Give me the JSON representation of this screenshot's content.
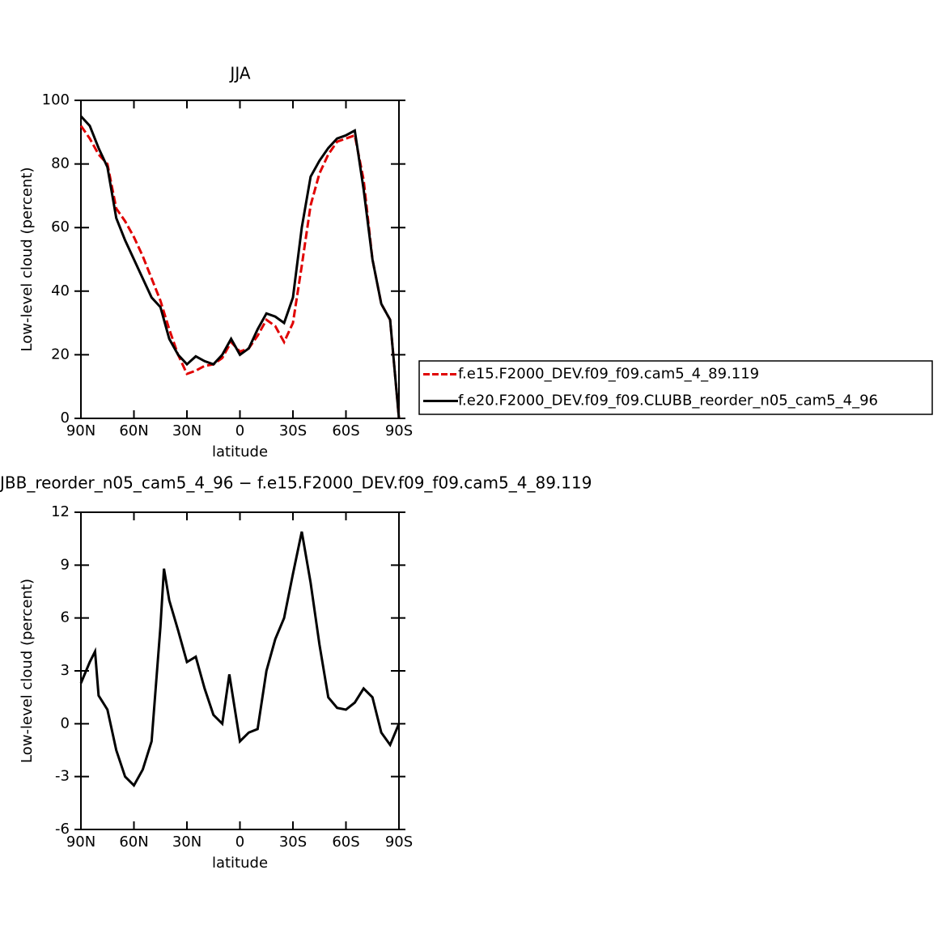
{
  "chart_data": [
    {
      "type": "line",
      "title": "JJA",
      "xlabel": "latitude",
      "ylabel": "Low-level cloud (percent)",
      "x": [
        90,
        85,
        80,
        75,
        70,
        65,
        60,
        55,
        50,
        45,
        40,
        35,
        30,
        25,
        20,
        15,
        10,
        5,
        0,
        -5,
        -10,
        -15,
        -20,
        -25,
        -30,
        -35,
        -40,
        -45,
        -50,
        -55,
        -60,
        -65,
        -70,
        -75,
        -80,
        -85,
        -90
      ],
      "xlim": [
        90,
        -90
      ],
      "xticks": [
        {
          "value": 90,
          "label": "90N"
        },
        {
          "value": 60,
          "label": "60N"
        },
        {
          "value": 30,
          "label": "30N"
        },
        0,
        {
          "value": -30,
          "label": "30S"
        },
        {
          "value": -60,
          "label": "60S"
        },
        {
          "value": -90,
          "label": "90S"
        }
      ],
      "ylim": [
        0,
        100
      ],
      "yticks": [
        0,
        20,
        40,
        60,
        80,
        100
      ],
      "series": [
        {
          "name": "f.e15.F2000_DEV.f09_f09.cam5_4_89.119",
          "color": "#e00000",
          "dashed": true,
          "values": [
            92,
            88,
            83,
            80,
            66,
            62,
            57,
            51,
            44,
            37,
            28,
            20,
            14,
            15,
            16.5,
            17,
            19,
            24,
            21,
            22,
            26,
            31,
            29,
            24,
            30,
            48,
            67,
            77,
            83,
            87,
            88,
            89,
            75,
            50,
            36,
            31,
            0
          ]
        },
        {
          "name": "f.e20.F2000_DEV.f09_f09.CLUBB_reorder_n05_cam5_4_96",
          "color": "#000000",
          "dashed": false,
          "values": [
            95,
            92,
            85,
            79,
            63,
            56,
            50,
            44,
            38,
            35,
            25,
            20,
            17,
            19.5,
            18,
            17,
            20,
            25,
            20,
            22,
            28,
            33,
            32,
            30,
            38,
            60,
            76,
            81,
            85,
            88,
            89,
            90.5,
            72,
            50,
            36,
            31,
            0
          ]
        }
      ]
    },
    {
      "type": "line",
      "title": "JBB_reorder_n05_cam5_4_96 − f.e15.F2000_DEV.f09_f09.cam5_4_89.119",
      "xlabel": "latitude",
      "ylabel": "Low-level cloud (percent)",
      "x": [
        90,
        85,
        82,
        80,
        75,
        70,
        65,
        60,
        55,
        50,
        45,
        43,
        40,
        35,
        30,
        25,
        20,
        15,
        10,
        6,
        0,
        -5,
        -10,
        -15,
        -20,
        -25,
        -30,
        -35,
        -40,
        -45,
        -50,
        -55,
        -60,
        -65,
        -70,
        -75,
        -80,
        -85,
        -90
      ],
      "xlim": [
        90,
        -90
      ],
      "xticks": [
        {
          "value": 90,
          "label": "90N"
        },
        {
          "value": 60,
          "label": "60N"
        },
        {
          "value": 30,
          "label": "30N"
        },
        0,
        {
          "value": -30,
          "label": "30S"
        },
        {
          "value": -60,
          "label": "60S"
        },
        {
          "value": -90,
          "label": "90S"
        }
      ],
      "ylim": [
        -6,
        12
      ],
      "yticks": [
        -6,
        -3,
        0,
        3,
        6,
        9,
        12
      ],
      "series": [
        {
          "color": "#000000",
          "dashed": false,
          "values": [
            2.3,
            3.5,
            4.1,
            1.6,
            0.8,
            -1.5,
            -3.0,
            -3.5,
            -2.6,
            -1.0,
            5.5,
            8.8,
            7.0,
            5.3,
            3.5,
            3.8,
            2.0,
            0.5,
            0.0,
            2.8,
            -1.0,
            -0.5,
            -0.3,
            3.0,
            4.8,
            6.0,
            8.5,
            10.9,
            8.0,
            4.5,
            1.5,
            0.9,
            0.8,
            1.2,
            2.0,
            1.5,
            -0.5,
            -1.2,
            0
          ]
        }
      ]
    }
  ]
}
